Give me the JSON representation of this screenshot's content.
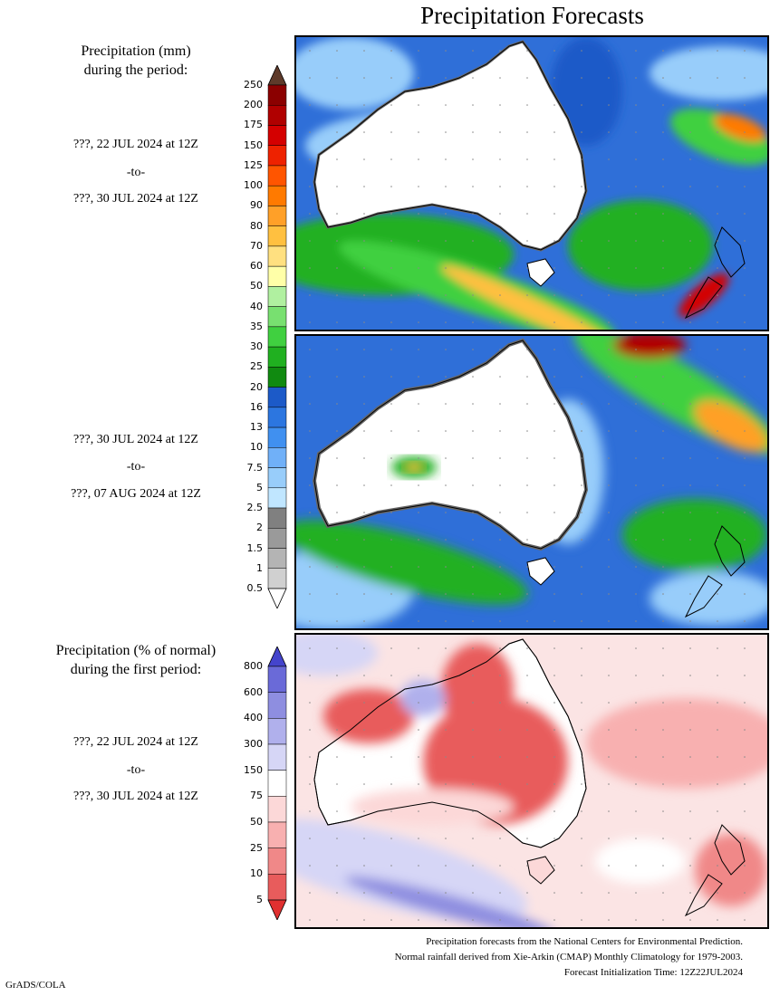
{
  "title": "Precipitation Forecasts",
  "panel1": {
    "heading_line1": "Precipitation (mm)",
    "heading_line2": "during the period:",
    "start": "???, 22 JUL 2024 at 12Z",
    "to": "-to-",
    "end": "???, 30 JUL 2024 at 12Z"
  },
  "panel2": {
    "start": "???, 30 JUL 2024 at 12Z",
    "to": "-to-",
    "end": "???, 07 AUG 2024 at 12Z"
  },
  "panel3": {
    "heading_line1": "Precipitation (% of normal)",
    "heading_line2": "during the first period:",
    "start": "???, 22 JUL 2024 at 12Z",
    "to": "-to-",
    "end": "???, 30 JUL 2024 at 12Z"
  },
  "precip_scale": {
    "labels": [
      "250",
      "200",
      "175",
      "150",
      "125",
      "100",
      "90",
      "80",
      "70",
      "60",
      "50",
      "40",
      "35",
      "30",
      "25",
      "20",
      "16",
      "13",
      "10",
      "7.5",
      "5",
      "2.5",
      "2",
      "1.5",
      "1",
      "0.5"
    ],
    "colors": [
      "#5e3a2a",
      "#8b0000",
      "#b00000",
      "#d40000",
      "#ee2200",
      "#ff5500",
      "#ff7a00",
      "#ffa028",
      "#ffc040",
      "#ffe080",
      "#ffffa8",
      "#b0f0a0",
      "#78e070",
      "#40d040",
      "#20b020",
      "#108a10",
      "#1c5ac8",
      "#2c76e0",
      "#4090f0",
      "#70b0f8",
      "#98cdfa",
      "#c0e6ff",
      "#808080",
      "#9a9a9a",
      "#b4b4b4",
      "#d0d0d0",
      "#ffffff"
    ]
  },
  "percent_scale": {
    "labels": [
      "800",
      "600",
      "400",
      "300",
      "150",
      "75",
      "50",
      "25",
      "10",
      "5"
    ],
    "colors": [
      "#4444cc",
      "#6a6ad8",
      "#8e8ee0",
      "#b0b0ec",
      "#d6d6f6",
      "#ffffff",
      "#fcd8d8",
      "#f8b0b0",
      "#f08888",
      "#e85c5c",
      "#e03030"
    ]
  },
  "footer": {
    "line1": "Precipitation forecasts from the National Centers for Environmental Prediction.",
    "line2": "Normal rainfall derived from Xie-Arkin (CMAP) Monthly Climatology for 1979-2003.",
    "line3": "Forecast Initialization Time: 12Z22JUL2024"
  },
  "credit": "GrADS/COLA"
}
